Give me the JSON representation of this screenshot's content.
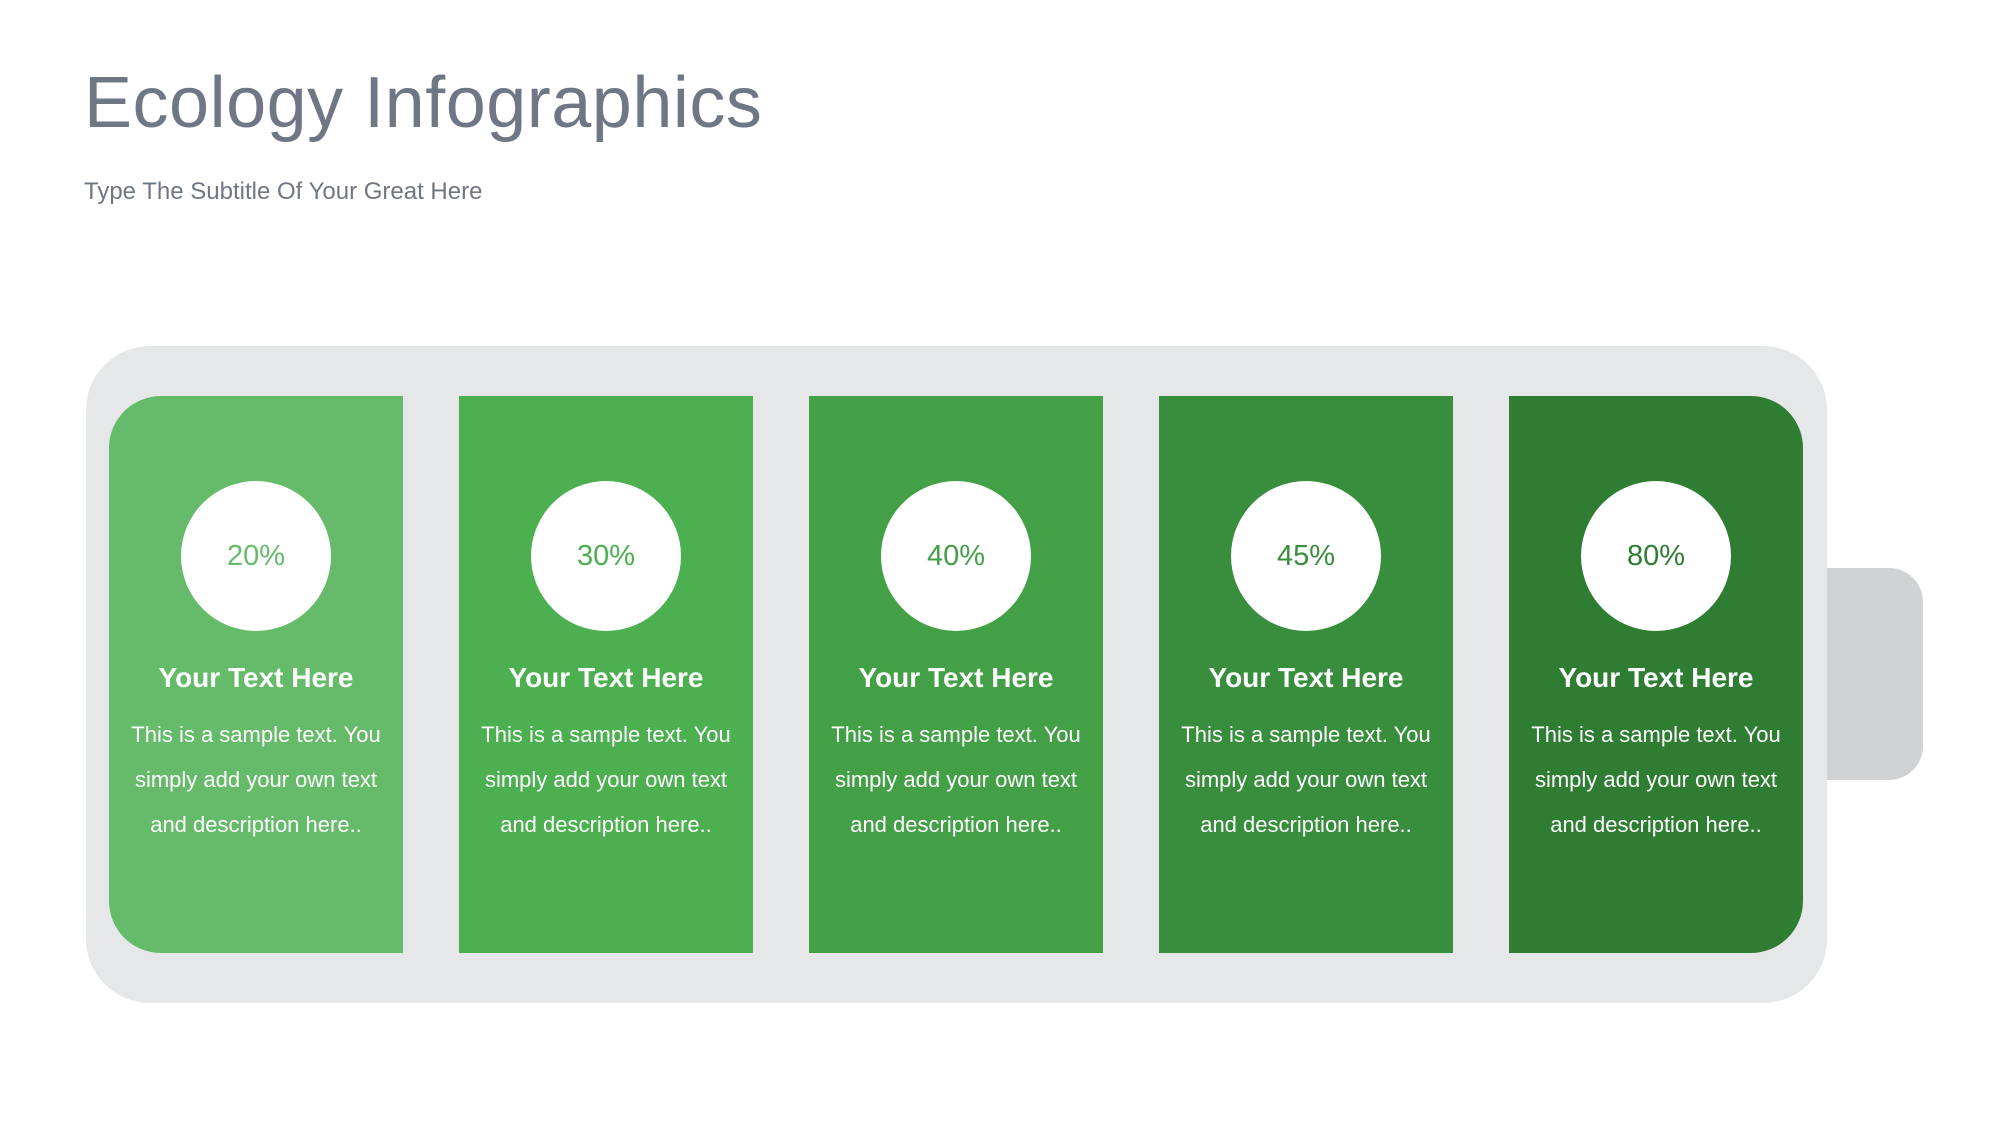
{
  "header": {
    "title": "Ecology Infographics",
    "subtitle": "Type The Subtitle Of Your Great Here"
  },
  "colors": {
    "battery_body": "#e6e7e9",
    "battery_terminal": "#d1d2d4",
    "title_text": "#6f7784"
  },
  "cards": [
    {
      "percent": "20%",
      "level": 20,
      "heading": "Your Text Here",
      "body": "This is a sample text. You simply add your own text and description here..",
      "color": "#66bb6a"
    },
    {
      "percent": "30%",
      "level": 30,
      "heading": "Your Text Here",
      "body": "This is a sample text. You simply add your own text and description here..",
      "color": "#4caf50"
    },
    {
      "percent": "40%",
      "level": 40,
      "heading": "Your Text Here",
      "body": "This is a sample text. You simply add your own text and description here..",
      "color": "#43a047"
    },
    {
      "percent": "45%",
      "level": 45,
      "heading": "Your Text Here",
      "body": "This is a sample text. You simply add your own text and description here..",
      "color": "#388e3c"
    },
    {
      "percent": "80%",
      "level": 80,
      "heading": "Your Text Here",
      "body": "This is a sample text. You simply add your own text and description here..",
      "color": "#2e7d32"
    }
  ]
}
